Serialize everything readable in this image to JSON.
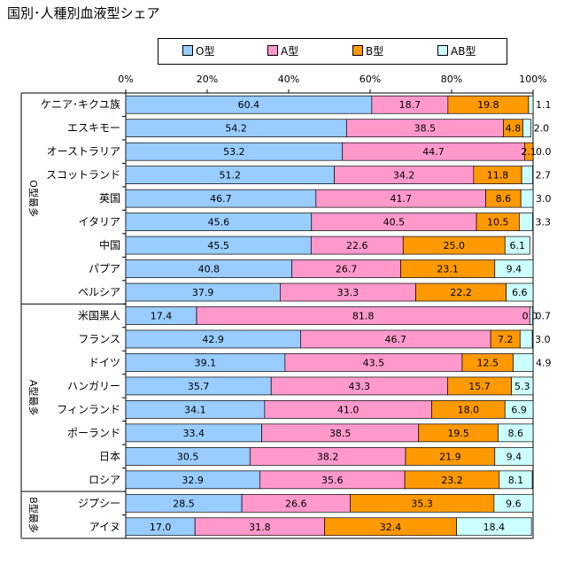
{
  "chart_data": {
    "type": "bar",
    "orientation": "horizontal",
    "stacked": true,
    "title": "国別･人種別血液型シェア",
    "xlim": [
      0,
      100
    ],
    "x_ticks": [
      "0%",
      "20%",
      "40%",
      "60%",
      "80%",
      "100%"
    ],
    "legend_placement": "top",
    "categories": [
      "ケニア･キクユ族",
      "エスキモー",
      "オーストラリア",
      "スコットランド",
      "英国",
      "イタリア",
      "中国",
      "パプア",
      "ペルシア",
      "米国黒人",
      "フランス",
      "ドイツ",
      "ハンガリー",
      "フィンランド",
      "ポーランド",
      "日本",
      "ロシア",
      "ジプシー",
      "アイヌ"
    ],
    "groups": [
      {
        "label": "O型最多",
        "start": 0,
        "end": 8
      },
      {
        "label": "A型最多",
        "start": 9,
        "end": 16
      },
      {
        "label": "B型最多",
        "start": 17,
        "end": 18
      }
    ],
    "series": [
      {
        "name": "O型",
        "color": "#99CCFF",
        "values": [
          60.4,
          54.2,
          53.2,
          51.2,
          46.7,
          45.6,
          45.5,
          40.8,
          37.9,
          17.4,
          42.9,
          39.1,
          35.7,
          34.1,
          33.4,
          30.5,
          32.9,
          28.5,
          17.0
        ]
      },
      {
        "name": "A型",
        "color": "#FF99CC",
        "values": [
          18.7,
          38.5,
          44.7,
          34.2,
          41.7,
          40.5,
          22.6,
          26.7,
          33.3,
          81.8,
          46.7,
          43.5,
          43.3,
          41.0,
          38.5,
          38.2,
          35.6,
          26.6,
          31.8
        ]
      },
      {
        "name": "B型",
        "color": "#FF9900",
        "values": [
          19.8,
          4.8,
          2.1,
          11.8,
          8.6,
          10.5,
          25.0,
          23.1,
          22.2,
          0.0,
          7.2,
          12.5,
          15.7,
          18.0,
          19.5,
          21.9,
          23.2,
          35.3,
          32.4
        ]
      },
      {
        "name": "AB型",
        "color": "#CCFFFF",
        "values": [
          1.1,
          2.0,
          0.0,
          2.7,
          3.0,
          3.3,
          6.1,
          9.4,
          6.6,
          0.7,
          3.0,
          4.9,
          5.3,
          6.9,
          8.6,
          9.4,
          8.1,
          9.6,
          18.4
        ]
      }
    ]
  }
}
